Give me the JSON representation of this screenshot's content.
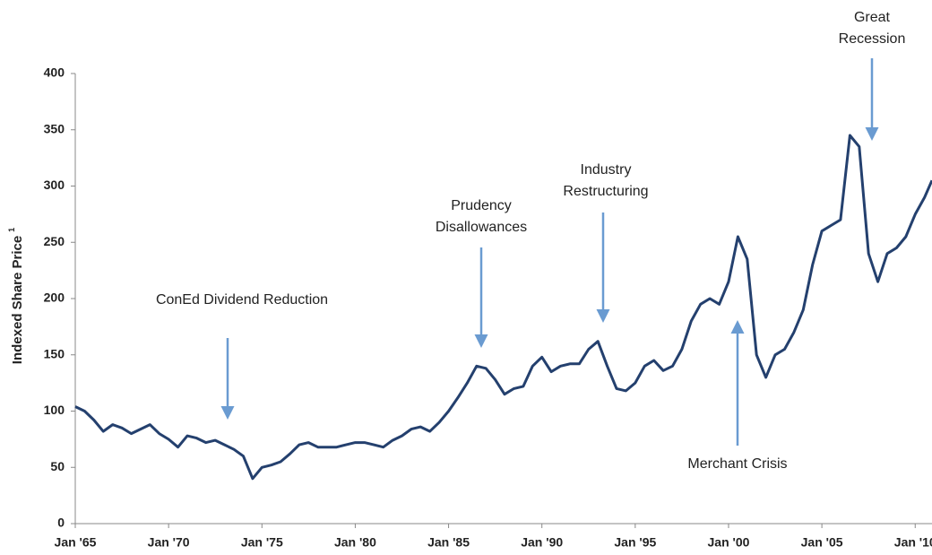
{
  "chart_data": {
    "type": "line",
    "ylabel": "Indexed Share Price",
    "ylabel_note": "1",
    "color": "#24406e",
    "grid": false,
    "xlim": [
      1965,
      2010.9
    ],
    "xticks": [
      {
        "value": 1965,
        "label": "Jan '65"
      },
      {
        "value": 1970,
        "label": "Jan '70"
      },
      {
        "value": 1975,
        "label": "Jan '75"
      },
      {
        "value": 1980,
        "label": "Jan '80"
      },
      {
        "value": 1985,
        "label": "Jan '85"
      },
      {
        "value": 1990,
        "label": "Jan '90"
      },
      {
        "value": 1995,
        "label": "Jan '95"
      },
      {
        "value": 2000,
        "label": "Jan '00"
      },
      {
        "value": 2005,
        "label": "Jan '05"
      },
      {
        "value": 2010,
        "label": "Jan '10"
      }
    ],
    "ylim": [
      0,
      400
    ],
    "yticks": [
      0,
      50,
      100,
      150,
      200,
      250,
      300,
      350,
      400
    ],
    "x": [
      1965,
      1965.5,
      1966,
      1966.5,
      1967,
      1967.5,
      1968,
      1968.5,
      1969,
      1969.5,
      1970,
      1970.5,
      1971,
      1971.5,
      1972,
      1972.5,
      1973,
      1973.5,
      1974,
      1974.5,
      1975,
      1975.5,
      1976,
      1976.5,
      1977,
      1977.5,
      1978,
      1978.5,
      1979,
      1979.5,
      1980,
      1980.5,
      1981,
      1981.5,
      1982,
      1982.5,
      1983,
      1983.5,
      1984,
      1984.5,
      1985,
      1985.5,
      1986,
      1986.5,
      1987,
      1987.5,
      1988,
      1988.5,
      1989,
      1989.5,
      1990,
      1990.5,
      1991,
      1991.5,
      1992,
      1992.5,
      1993,
      1993.5,
      1994,
      1994.5,
      1995,
      1995.5,
      1996,
      1996.5,
      1997,
      1997.5,
      1998,
      1998.5,
      1999,
      1999.5,
      2000,
      2000.5,
      2001,
      2001.5,
      2002,
      2002.5,
      2003,
      2003.5,
      2004,
      2004.5,
      2005,
      2005.5,
      2006,
      2006.5,
      2007,
      2007.5,
      2008,
      2008.5,
      2009,
      2009.5,
      2010,
      2010.5,
      2010.9
    ],
    "values": [
      104,
      100,
      92,
      82,
      88,
      85,
      80,
      84,
      88,
      80,
      75,
      68,
      78,
      76,
      72,
      74,
      70,
      66,
      60,
      40,
      50,
      52,
      55,
      62,
      70,
      72,
      68,
      68,
      68,
      70,
      72,
      72,
      70,
      68,
      74,
      78,
      84,
      86,
      82,
      90,
      100,
      112,
      125,
      140,
      138,
      128,
      115,
      120,
      122,
      140,
      148,
      135,
      140,
      142,
      142,
      155,
      162,
      140,
      120,
      118,
      125,
      140,
      145,
      136,
      140,
      155,
      180,
      195,
      200,
      195,
      215,
      255,
      235,
      150,
      130,
      150,
      155,
      170,
      190,
      230,
      260,
      265,
      270,
      345,
      335,
      240,
      215,
      240,
      245,
      255,
      275,
      290,
      305
    ],
    "annotations": [
      {
        "lines": [
          "ConEd Dividend Reduction"
        ]
      },
      {
        "lines": [
          "Prudency",
          "Disallowances"
        ]
      },
      {
        "lines": [
          "Industry",
          "Restructuring"
        ]
      },
      {
        "lines": [
          "Merchant Crisis"
        ]
      },
      {
        "lines": [
          "Great",
          "Recession"
        ]
      }
    ]
  }
}
